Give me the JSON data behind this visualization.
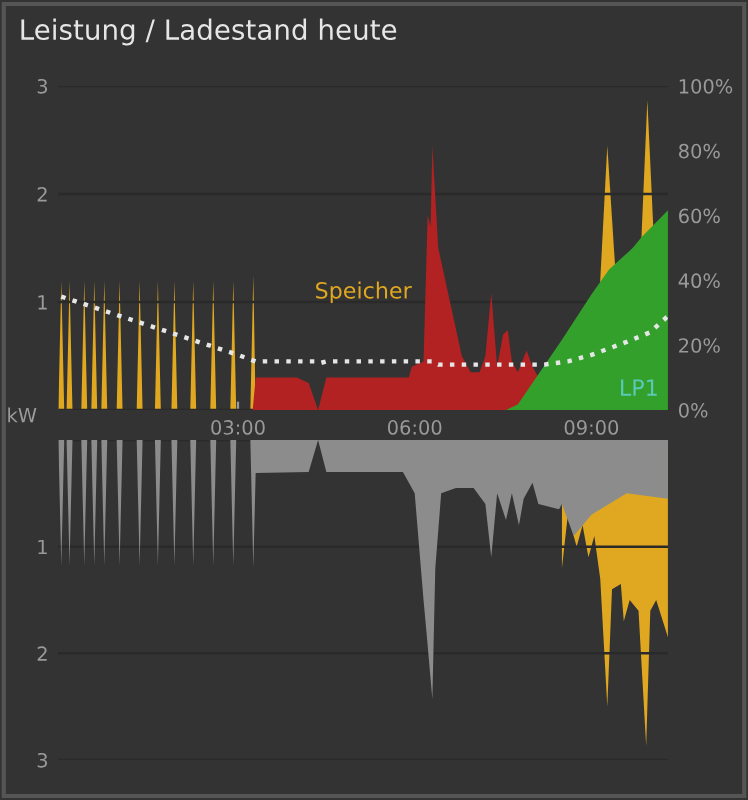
{
  "chart_data": [
    {
      "type": "area",
      "title": "Leistung / Ladestand heute",
      "ylabel": "kW",
      "xlim": [
        -0.05,
        10.3
      ],
      "xticks": [
        {
          "value": 3,
          "label": "03:00"
        },
        {
          "value": 6,
          "label": "06:00"
        },
        {
          "value": 9,
          "label": "09:00"
        }
      ],
      "ylim": [
        0,
        3
      ],
      "yticks": [
        {
          "value": 0,
          "label": null
        },
        1,
        2,
        3
      ],
      "y2lim": [
        0,
        100
      ],
      "y2ticks": [
        {
          "value": 0,
          "label": "0%"
        },
        {
          "value": 20,
          "label": "20%"
        },
        {
          "value": 40,
          "label": "40%"
        },
        {
          "value": 60,
          "label": "60%"
        },
        {
          "value": 80,
          "label": "80%"
        },
        {
          "value": 100,
          "label": "100%"
        }
      ],
      "grid": "y",
      "annotations": [
        "Speicher",
        "LP1"
      ],
      "series": [
        {
          "color": "#e0a820",
          "x": [
            -0.05,
            0.0,
            0.05,
            0.09,
            0.14,
            0.19,
            0.34,
            0.39,
            0.44,
            0.51,
            0.56,
            0.61,
            0.68,
            0.73,
            0.78,
            0.94,
            0.99,
            1.04,
            1.28,
            1.33,
            1.38,
            1.59,
            1.64,
            1.69,
            1.87,
            1.92,
            1.97,
            2.19,
            2.24,
            2.29,
            2.53,
            2.58,
            2.63,
            2.87,
            2.92,
            2.97,
            3.21,
            3.26,
            3.3,
            6.0,
            9.15,
            9.27,
            9.4,
            9.6,
            9.85,
            9.95,
            10.05
          ],
          "values": [
            0,
            1.2,
            0,
            0,
            1.2,
            0,
            0,
            1.2,
            0,
            0,
            1.2,
            0,
            0,
            1.2,
            0,
            0,
            1.2,
            0,
            0,
            1.2,
            0,
            0,
            1.2,
            0,
            0,
            1.2,
            0,
            0,
            1.2,
            0,
            0,
            1.2,
            0,
            0,
            1.2,
            0,
            0,
            1.25,
            0,
            null,
            1.2,
            2.45,
            1.35,
            null,
            1.6,
            2.87,
            1.7
          ]
        },
        {
          "color": "#b22222",
          "x": [
            3.25,
            3.3,
            4.0,
            4.2,
            4.36,
            4.5,
            5.0,
            5.9,
            5.95,
            6.15,
            6.22,
            6.27,
            6.3,
            6.4,
            6.6,
            6.8,
            6.95,
            7.1,
            7.2,
            7.3,
            7.4,
            7.5,
            7.58,
            7.65,
            7.75,
            7.9,
            8.0,
            8.1,
            8.3
          ],
          "values": [
            0,
            0.3,
            0.3,
            0.25,
            0.0,
            0.3,
            0.3,
            0.3,
            0.4,
            0.45,
            1.8,
            1.7,
            2.45,
            1.5,
            1.0,
            0.5,
            0.35,
            0.35,
            0.5,
            1.08,
            0.4,
            0.7,
            0.74,
            0.45,
            0.35,
            0.55,
            0.4,
            0.3,
            0
          ]
        },
        {
          "color": "#33a02c",
          "x": [
            7.55,
            7.75,
            8.5,
            9.0,
            9.3,
            9.6,
            9.7,
            9.85,
            10.3
          ],
          "values": [
            0,
            0.05,
            0.65,
            1.07,
            1.3,
            1.45,
            1.5,
            1.6,
            1.85
          ]
        },
        {
          "type": "line",
          "axis": "y2",
          "color": "#e6e6e6",
          "line_style": "dotted",
          "x": [
            0,
            0.5,
            1,
            1.5,
            2,
            2.5,
            3,
            3.3,
            4.3,
            4.4,
            4.5,
            6.3,
            6.4,
            8.2,
            8.6,
            9.0,
            9.3,
            9.6,
            10.0,
            10.3
          ],
          "values": [
            35,
            32,
            29,
            26,
            23,
            20,
            17,
            15,
            15,
            14.5,
            15,
            15,
            14,
            14,
            15,
            17,
            19,
            21,
            24,
            29
          ]
        }
      ]
    },
    {
      "type": "area",
      "tick_labels": "y",
      "xlim": [
        -0.05,
        10.3
      ],
      "ylim": [
        3,
        0
      ],
      "yticks": [
        {
          "value": 0,
          "label": null
        },
        1,
        2,
        3
      ],
      "grid": "y",
      "series": [
        {
          "color": "#e0a820",
          "x": [
            8.5,
            8.6,
            8.75,
            8.85,
            8.95,
            9.05,
            9.15,
            9.27,
            9.35,
            9.5,
            9.55,
            9.65,
            9.8,
            9.93,
            10.0,
            10.1,
            10.3
          ],
          "values": [
            1.2,
            0.7,
            1.0,
            0.8,
            1.1,
            0.9,
            1.3,
            2.5,
            1.4,
            1.35,
            1.7,
            1.5,
            1.6,
            2.87,
            1.6,
            1.5,
            1.85
          ]
        },
        {
          "color": "#8c8c8c",
          "x": [
            -0.05,
            0.0,
            0.05,
            0.09,
            0.14,
            0.19,
            0.34,
            0.39,
            0.44,
            0.51,
            0.56,
            0.61,
            0.68,
            0.73,
            0.78,
            0.94,
            0.99,
            1.04,
            1.28,
            1.33,
            1.38,
            1.59,
            1.64,
            1.69,
            1.87,
            1.92,
            1.97,
            2.19,
            2.24,
            2.29,
            2.53,
            2.58,
            2.63,
            2.87,
            2.92,
            2.97,
            3.21,
            3.26,
            3.3,
            4.2,
            4.36,
            4.5,
            5.8,
            6.0,
            6.15,
            6.2,
            6.3,
            6.35,
            6.45,
            6.7,
            7.0,
            7.2,
            7.3,
            7.4,
            7.55,
            7.65,
            7.77,
            7.85,
            8.0,
            8.1,
            8.45,
            8.5,
            8.7,
            9.0,
            9.3,
            9.6,
            10.3
          ],
          "values": [
            0,
            1.18,
            0,
            0,
            1.18,
            0,
            0,
            1.18,
            0,
            0,
            1.18,
            0,
            0,
            1.18,
            0,
            0,
            1.18,
            0,
            0,
            1.18,
            0,
            0,
            1.18,
            0,
            0,
            1.18,
            0,
            0,
            1.18,
            0,
            0,
            1.18,
            0,
            0,
            1.18,
            0,
            0,
            1.2,
            0.31,
            0.3,
            0,
            0.3,
            0.3,
            0.5,
            1.5,
            1.8,
            2.43,
            1.2,
            0.5,
            0.45,
            0.45,
            0.6,
            1.1,
            0.5,
            0.75,
            0.5,
            0.8,
            0.55,
            0.4,
            0.6,
            0.65,
            0.6,
            0.9,
            0.7,
            0.6,
            0.5,
            0.55
          ]
        }
      ]
    }
  ]
}
